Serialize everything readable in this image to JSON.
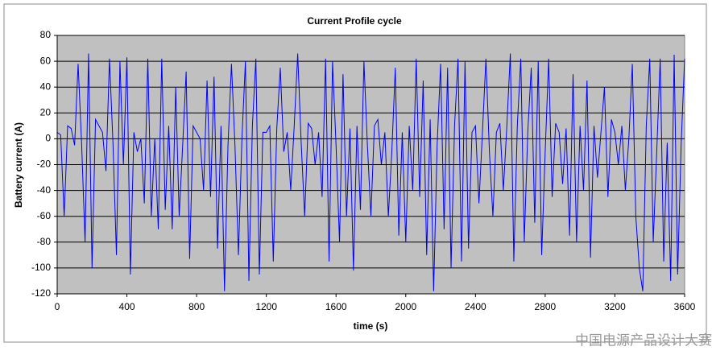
{
  "chart_data": {
    "type": "line",
    "title": "Current Profile cycle",
    "x_label": "time (s)",
    "y_label": "Battery current (A)",
    "watermark": "中国电源产品设计大赛",
    "x": [
      0,
      20,
      40,
      60,
      80,
      100,
      120,
      140,
      160,
      180,
      200,
      220,
      240,
      260,
      280,
      300,
      320,
      340,
      360,
      380,
      400,
      420,
      440,
      460,
      480,
      500,
      520,
      540,
      560,
      580,
      600,
      620,
      640,
      660,
      680,
      700,
      720,
      740,
      760,
      780,
      800,
      820,
      840,
      860,
      880,
      900,
      920,
      940,
      960,
      980,
      1000,
      1020,
      1040,
      1060,
      1080,
      1100,
      1120,
      1140,
      1160,
      1180,
      1200,
      1220,
      1240,
      1260,
      1280,
      1300,
      1320,
      1340,
      1360,
      1380,
      1400,
      1420,
      1440,
      1460,
      1480,
      1500,
      1520,
      1540,
      1560,
      1580,
      1600,
      1620,
      1640,
      1660,
      1680,
      1700,
      1720,
      1740,
      1760,
      1780,
      1800,
      1820,
      1840,
      1860,
      1880,
      1900,
      1920,
      1940,
      1960,
      1980,
      2000,
      2020,
      2040,
      2060,
      2080,
      2100,
      2120,
      2140,
      2160,
      2180,
      2200,
      2220,
      2240,
      2260,
      2280,
      2300,
      2320,
      2340,
      2360,
      2380,
      2400,
      2420,
      2440,
      2460,
      2480,
      2500,
      2520,
      2540,
      2560,
      2580,
      2600,
      2620,
      2640,
      2660,
      2680,
      2700,
      2720,
      2740,
      2760,
      2780,
      2800,
      2820,
      2840,
      2860,
      2880,
      2900,
      2920,
      2940,
      2960,
      2980,
      3000,
      3020,
      3040,
      3060,
      3080,
      3100,
      3120,
      3140,
      3160,
      3180,
      3200,
      3220,
      3240,
      3260,
      3280,
      3300,
      3320,
      3340,
      3360,
      3380,
      3400,
      3420,
      3440,
      3460,
      3480,
      3500,
      3520,
      3540,
      3560,
      3580,
      3600
    ],
    "series": [
      {
        "name": "Battery current",
        "color": "#0000ff",
        "values": [
          5,
          3,
          -60,
          10,
          8,
          -5,
          58,
          -3,
          -80,
          66,
          -100,
          15,
          10,
          5,
          -25,
          62,
          -3,
          -90,
          60,
          -20,
          63,
          -105,
          5,
          -10,
          0,
          -50,
          62,
          -60,
          0,
          -70,
          62,
          -55,
          10,
          -70,
          40,
          -60,
          -5,
          52,
          -93,
          10,
          5,
          0,
          -40,
          45,
          -45,
          48,
          -85,
          10,
          -118,
          -5,
          58,
          -5,
          -90,
          0,
          60,
          -110,
          10,
          62,
          -105,
          5,
          5,
          10,
          -95,
          8,
          55,
          -10,
          5,
          -40,
          10,
          66,
          -3,
          -60,
          12,
          8,
          -20,
          5,
          -45,
          62,
          -95,
          60,
          -5,
          -80,
          50,
          -60,
          8,
          -102,
          10,
          -55,
          60,
          -5,
          -60,
          10,
          15,
          -20,
          5,
          -60,
          -10,
          55,
          -75,
          5,
          -80,
          10,
          -40,
          62,
          -45,
          45,
          -90,
          15,
          -118,
          -5,
          58,
          -70,
          55,
          -100,
          10,
          62,
          -95,
          60,
          -85,
          5,
          10,
          -50,
          5,
          62,
          -10,
          -60,
          5,
          12,
          -40,
          10,
          66,
          -95,
          10,
          62,
          -80,
          5,
          55,
          -65,
          60,
          -90,
          -10,
          62,
          -45,
          12,
          5,
          -35,
          8,
          -75,
          50,
          -80,
          10,
          -40,
          45,
          -92,
          10,
          -30,
          5,
          40,
          -45,
          15,
          5,
          -20,
          10,
          -40,
          0,
          58,
          -60,
          -100,
          -118,
          10,
          62,
          -80,
          -10,
          62,
          -95,
          -3,
          -110,
          65,
          -105,
          -5,
          62
        ]
      }
    ],
    "xlim": [
      0,
      3600
    ],
    "xticks": [
      0,
      400,
      800,
      1200,
      1600,
      2000,
      2400,
      2800,
      3200,
      3600
    ],
    "ylim": [
      -120,
      80
    ],
    "yticks": [
      -120,
      -100,
      -80,
      -60,
      -40,
      -20,
      0,
      20,
      40,
      60,
      80
    ],
    "grid": true,
    "legend": false,
    "plot_background": "#c0c0c0"
  }
}
